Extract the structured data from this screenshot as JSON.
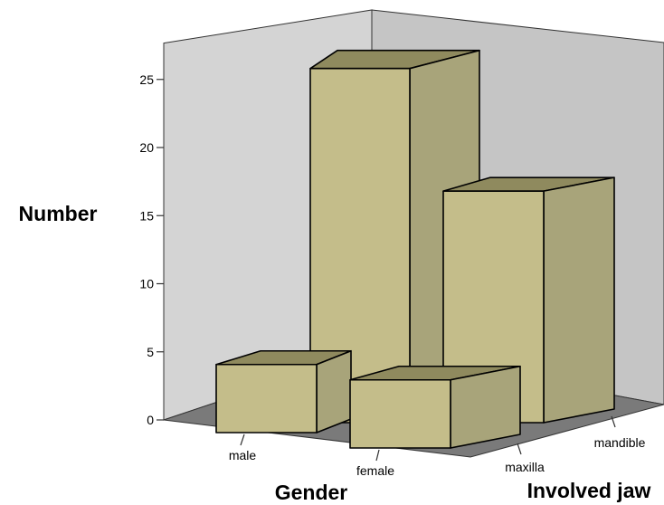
{
  "chart_data": {
    "type": "bar",
    "subtype": "3d-grouped",
    "ylabel": "Number",
    "xlabel": "Gender",
    "zlabel": "Involved jaw",
    "categories": [
      "male",
      "female"
    ],
    "depth_categories": [
      "maxilla",
      "mandible"
    ],
    "yticks": [
      "0",
      "5",
      "10",
      "15",
      "20",
      "25"
    ],
    "ylim": [
      0,
      27
    ],
    "series": [
      {
        "name": "maxilla",
        "values": [
          5,
          5
        ]
      },
      {
        "name": "mandible",
        "values": [
          26,
          17
        ]
      }
    ],
    "grid": false,
    "legend": "none",
    "colors": {
      "bar_front": "#c4bd8a",
      "bar_side": "#a8a47a",
      "bar_top": "#8f8a5e",
      "back_wall": "#c5c5c5",
      "left_wall": "#d4d4d4",
      "floor": "#7a7a7a"
    }
  }
}
